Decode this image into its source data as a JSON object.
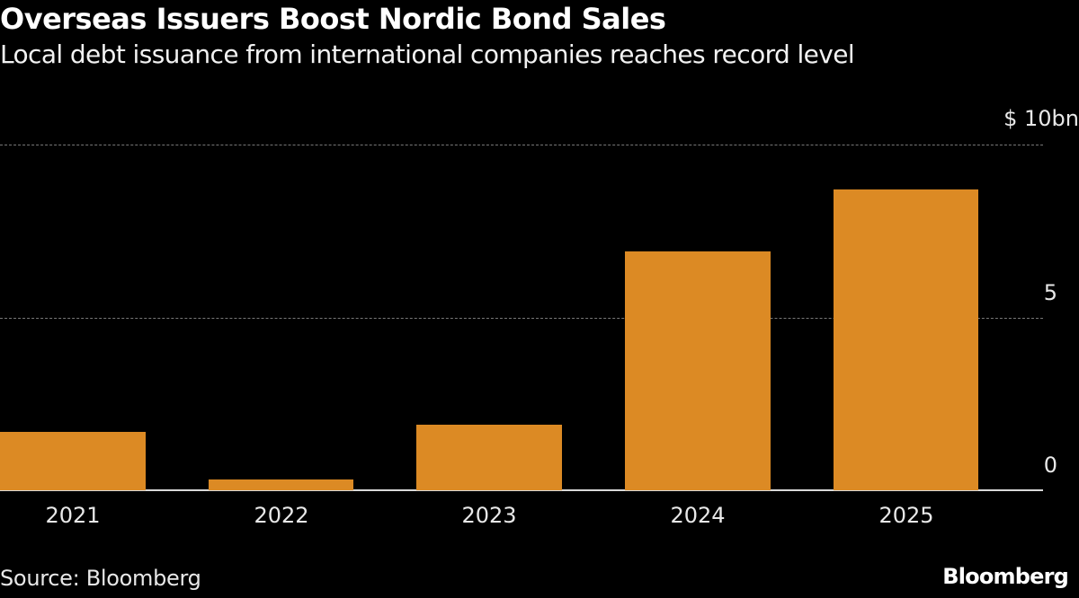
{
  "header": {
    "title": "Overseas Issuers Boost Nordic Bond Sales",
    "subtitle": "Local debt issuance from international companies reaches record level"
  },
  "axis": {
    "y_ticks": [
      {
        "label": "$ 10bn",
        "value": 10
      },
      {
        "label": "5",
        "value": 5
      },
      {
        "label": "0",
        "value": 0
      }
    ]
  },
  "footer": {
    "source": "Source: Bloomberg",
    "logo": "Bloomberg"
  },
  "colors": {
    "bar": "#dc8a24",
    "background": "#000000",
    "text": "#ffffff"
  },
  "chart_data": {
    "type": "bar",
    "title": "Overseas Issuers Boost Nordic Bond Sales",
    "subtitle": "Local debt issuance from international companies reaches record level",
    "categories": [
      "2021",
      "2022",
      "2023",
      "2024",
      "2025"
    ],
    "values": [
      1.7,
      0.3,
      1.9,
      6.9,
      8.7
    ],
    "xlabel": "",
    "ylabel": "$ bn",
    "ylim": [
      0,
      10
    ],
    "yticks": [
      0,
      5,
      10
    ],
    "grid": true,
    "legend": null,
    "source": "Source: Bloomberg"
  }
}
